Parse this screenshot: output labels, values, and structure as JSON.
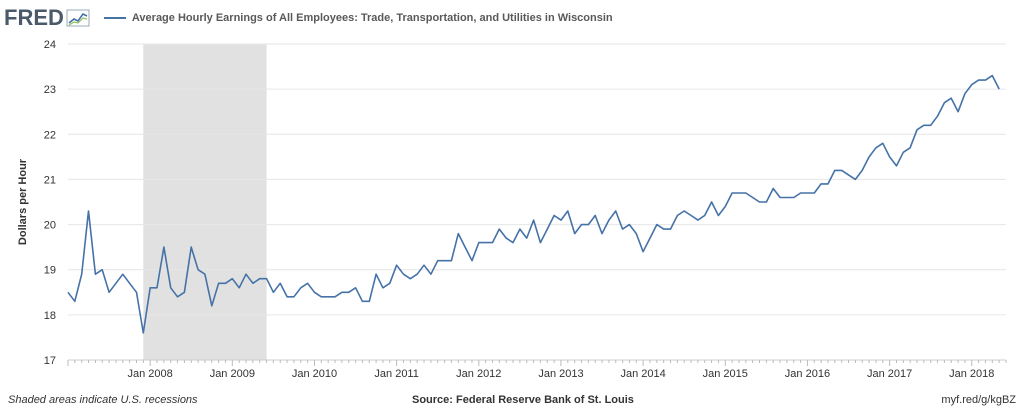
{
  "header": {
    "logo_text": "FRED",
    "title": "Average Hourly Earnings of All Employees: Trade, Transportation, and Utilities in Wisconsin"
  },
  "footer": {
    "note": "Shaded areas indicate U.S. recessions",
    "source": "Source: Federal Reserve Bank of St. Louis",
    "link": "myf.red/g/kgBZ"
  },
  "colors": {
    "line": "#4572a7",
    "recession": "#e1e1e1",
    "grid": "#e6e6e6",
    "logo": "#4a5a6a"
  },
  "chart_data": {
    "type": "line",
    "title": "Average Hourly Earnings of All Employees: Trade, Transportation, and Utilities in Wisconsin",
    "xlabel": "",
    "ylabel": "Dollars per Hour",
    "ylim": [
      17,
      24
    ],
    "yticks": [
      17,
      18,
      19,
      20,
      21,
      22,
      23,
      24
    ],
    "xlim": [
      "2007-01",
      "2018-06"
    ],
    "xticks": [
      "Jan 2008",
      "Jan 2009",
      "Jan 2010",
      "Jan 2011",
      "Jan 2012",
      "Jan 2013",
      "Jan 2014",
      "Jan 2015",
      "Jan 2016",
      "Jan 2017",
      "Jan 2018"
    ],
    "grid": "horizontal",
    "recessions": [
      {
        "start": "2007-12",
        "end": "2009-06"
      }
    ],
    "series": [
      {
        "start": "2007-01",
        "frequency": "monthly",
        "values": [
          18.5,
          18.3,
          18.9,
          20.3,
          18.9,
          19.0,
          18.5,
          18.7,
          18.9,
          18.7,
          18.5,
          17.6,
          18.6,
          18.6,
          19.5,
          18.6,
          18.4,
          18.5,
          19.5,
          19.0,
          18.9,
          18.2,
          18.7,
          18.7,
          18.8,
          18.6,
          18.9,
          18.7,
          18.8,
          18.8,
          18.5,
          18.7,
          18.4,
          18.4,
          18.6,
          18.7,
          18.5,
          18.4,
          18.4,
          18.4,
          18.5,
          18.5,
          18.6,
          18.3,
          18.3,
          18.9,
          18.6,
          18.7,
          19.1,
          18.9,
          18.8,
          18.9,
          19.1,
          18.9,
          19.2,
          19.2,
          19.2,
          19.8,
          19.5,
          19.2,
          19.6,
          19.6,
          19.6,
          19.9,
          19.7,
          19.6,
          19.9,
          19.7,
          20.1,
          19.6,
          19.9,
          20.2,
          20.1,
          20.3,
          19.8,
          20.0,
          20.0,
          20.2,
          19.8,
          20.1,
          20.3,
          19.9,
          20.0,
          19.8,
          19.4,
          19.7,
          20.0,
          19.9,
          19.9,
          20.2,
          20.3,
          20.2,
          20.1,
          20.2,
          20.5,
          20.2,
          20.4,
          20.7,
          20.7,
          20.7,
          20.6,
          20.5,
          20.5,
          20.8,
          20.6,
          20.6,
          20.6,
          20.7,
          20.7,
          20.7,
          20.9,
          20.9,
          21.2,
          21.2,
          21.1,
          21.0,
          21.2,
          21.5,
          21.7,
          21.8,
          21.5,
          21.3,
          21.6,
          21.7,
          22.1,
          22.2,
          22.2,
          22.4,
          22.7,
          22.8,
          22.5,
          22.9,
          23.1,
          23.2,
          23.2,
          23.3,
          23.0
        ]
      }
    ]
  }
}
